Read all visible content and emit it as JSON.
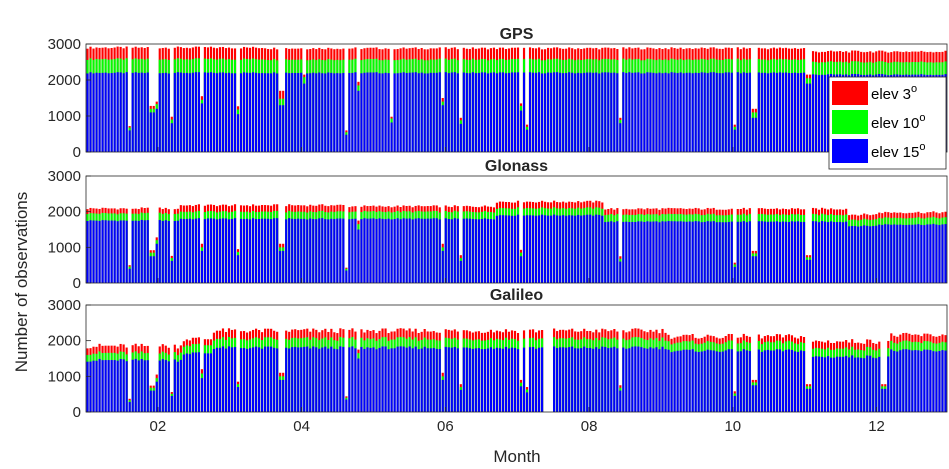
{
  "chart_data": {
    "type": "bar",
    "stacked": true,
    "ylabel": "Number of observations",
    "xlabel": "Month",
    "x_domain_months": [
      1,
      12.98
    ],
    "x_ticks": [
      {
        "value": 2,
        "label": "02"
      },
      {
        "value": 4,
        "label": "04"
      },
      {
        "value": 6,
        "label": "06"
      },
      {
        "value": 8,
        "label": "08"
      },
      {
        "value": 10,
        "label": "10"
      },
      {
        "value": 12,
        "label": "12"
      }
    ],
    "ylim": [
      0,
      3000
    ],
    "y_ticks": [
      0,
      1000,
      2000,
      3000
    ],
    "legend": {
      "placement": "right-inside (GPS panel)",
      "entries": [
        {
          "label": "elev 3",
          "superscript": "o",
          "color": "#ff0000"
        },
        {
          "label": "elev 10",
          "superscript": "o",
          "color": "#00ff00"
        },
        {
          "label": "elev 15",
          "superscript": "o",
          "color": "#0000ff"
        }
      ]
    },
    "colors": {
      "elev_3": "#ff0000",
      "elev_10": "#00ff00",
      "elev_15": "#0000ff"
    },
    "panels": [
      {
        "title": "GPS",
        "segments": [
          {
            "from": 1.0,
            "to": 3.5,
            "elev15": 2200,
            "elev10": 2580,
            "elev3": 2900
          },
          {
            "from": 3.5,
            "to": 11.0,
            "elev15": 2200,
            "elev10": 2570,
            "elev3": 2880
          },
          {
            "from": 11.0,
            "to": 12.98,
            "elev15": 2150,
            "elev10": 2500,
            "elev3": 2790
          }
        ],
        "dips": [
          {
            "month": 1.62,
            "elev15": 600,
            "elev10": 680,
            "elev3": 720
          },
          {
            "month": 1.92,
            "elev15": 1100,
            "elev10": 1200,
            "elev3": 1280
          },
          {
            "month": 2.0,
            "elev15": 1200,
            "elev10": 1330,
            "elev3": 1400
          },
          {
            "month": 2.18,
            "elev15": 800,
            "elev10": 900,
            "elev3": 980
          },
          {
            "month": 2.62,
            "elev15": 1350,
            "elev10": 1450,
            "elev3": 1550
          },
          {
            "month": 3.12,
            "elev15": 1050,
            "elev10": 1180,
            "elev3": 1270
          },
          {
            "month": 3.72,
            "elev15": 1300,
            "elev10": 1480,
            "elev3": 1700
          },
          {
            "month": 4.05,
            "elev15": 1900,
            "elev10": 2080,
            "elev3": 2150
          },
          {
            "month": 4.62,
            "elev15": 480,
            "elev10": 550,
            "elev3": 600
          },
          {
            "month": 4.8,
            "elev15": 1700,
            "elev10": 1850,
            "elev3": 1950
          },
          {
            "month": 5.25,
            "elev15": 820,
            "elev10": 930,
            "elev3": 980
          },
          {
            "month": 5.95,
            "elev15": 1300,
            "elev10": 1400,
            "elev3": 1500
          },
          {
            "month": 6.22,
            "elev15": 780,
            "elev10": 880,
            "elev3": 950
          },
          {
            "month": 7.05,
            "elev15": 1150,
            "elev10": 1280,
            "elev3": 1350
          },
          {
            "month": 7.15,
            "elev15": 620,
            "elev10": 700,
            "elev3": 760
          },
          {
            "month": 8.45,
            "elev15": 800,
            "elev10": 890,
            "elev3": 950
          },
          {
            "month": 10.02,
            "elev15": 620,
            "elev10": 700,
            "elev3": 760
          },
          {
            "month": 10.3,
            "elev15": 950,
            "elev10": 1100,
            "elev3": 1200
          },
          {
            "month": 11.05,
            "elev15": 1900,
            "elev10": 2050,
            "elev3": 2150
          }
        ]
      },
      {
        "title": "Glonass",
        "segments": [
          {
            "from": 1.0,
            "to": 2.3,
            "elev15": 1750,
            "elev10": 1950,
            "elev3": 2090
          },
          {
            "from": 2.3,
            "to": 4.6,
            "elev15": 1800,
            "elev10": 2000,
            "elev3": 2180
          },
          {
            "from": 4.6,
            "to": 6.7,
            "elev15": 1800,
            "elev10": 2000,
            "elev3": 2150
          },
          {
            "from": 6.7,
            "to": 8.2,
            "elev15": 1900,
            "elev10": 2100,
            "elev3": 2280
          },
          {
            "from": 8.2,
            "to": 11.6,
            "elev15": 1720,
            "elev10": 1920,
            "elev3": 2080
          },
          {
            "from": 11.6,
            "to": 12.0,
            "elev15": 1600,
            "elev10": 1780,
            "elev3": 1920
          },
          {
            "from": 12.0,
            "to": 12.98,
            "elev15": 1640,
            "elev10": 1830,
            "elev3": 1980
          }
        ],
        "dips": [
          {
            "month": 1.62,
            "elev15": 400,
            "elev10": 460,
            "elev3": 500
          },
          {
            "month": 1.92,
            "elev15": 750,
            "elev10": 850,
            "elev3": 920
          },
          {
            "month": 2.0,
            "elev15": 1100,
            "elev10": 1200,
            "elev3": 1280
          },
          {
            "month": 2.18,
            "elev15": 620,
            "elev10": 700,
            "elev3": 760
          },
          {
            "month": 2.62,
            "elev15": 900,
            "elev10": 1000,
            "elev3": 1100
          },
          {
            "month": 3.12,
            "elev15": 780,
            "elev10": 870,
            "elev3": 950
          },
          {
            "month": 3.72,
            "elev15": 900,
            "elev10": 1000,
            "elev3": 1100
          },
          {
            "month": 4.62,
            "elev15": 350,
            "elev10": 400,
            "elev3": 430
          },
          {
            "month": 4.8,
            "elev15": 1500,
            "elev10": 1650,
            "elev3": 1750
          },
          {
            "month": 5.95,
            "elev15": 900,
            "elev10": 1000,
            "elev3": 1100
          },
          {
            "month": 6.22,
            "elev15": 620,
            "elev10": 700,
            "elev3": 780
          },
          {
            "month": 7.05,
            "elev15": 750,
            "elev10": 850,
            "elev3": 930
          },
          {
            "month": 8.45,
            "elev15": 600,
            "elev10": 680,
            "elev3": 750
          },
          {
            "month": 10.02,
            "elev15": 450,
            "elev10": 520,
            "elev3": 570
          },
          {
            "month": 10.3,
            "elev15": 750,
            "elev10": 830,
            "elev3": 900
          },
          {
            "month": 11.05,
            "elev15": 650,
            "elev10": 720,
            "elev3": 780
          }
        ]
      },
      {
        "title": "Galileo",
        "segments": [
          {
            "from": 1.0,
            "to": 2.35,
            "elev15": 1450,
            "elev10": 1650,
            "elev3": 1850
          },
          {
            "from": 2.35,
            "to": 2.75,
            "elev15": 1650,
            "elev10": 1880,
            "elev3": 2050
          },
          {
            "from": 2.75,
            "to": 9.1,
            "elev15": 1800,
            "elev10": 2050,
            "elev3": 2280
          },
          {
            "from": 9.1,
            "to": 11.0,
            "elev15": 1720,
            "elev10": 1950,
            "elev3": 2120
          },
          {
            "from": 11.0,
            "to": 12.2,
            "elev15": 1550,
            "elev10": 1780,
            "elev3": 1980
          },
          {
            "from": 12.2,
            "to": 12.98,
            "elev15": 1720,
            "elev10": 1950,
            "elev3": 2150
          }
        ],
        "dips": [
          {
            "month": 1.62,
            "elev15": 280,
            "elev10": 330,
            "elev3": 370
          },
          {
            "month": 1.92,
            "elev15": 600,
            "elev10": 680,
            "elev3": 740
          },
          {
            "month": 2.0,
            "elev15": 850,
            "elev10": 950,
            "elev3": 1050
          },
          {
            "month": 2.18,
            "elev15": 450,
            "elev10": 510,
            "elev3": 560
          },
          {
            "month": 2.62,
            "elev15": 950,
            "elev10": 1080,
            "elev3": 1200
          },
          {
            "month": 3.12,
            "elev15": 700,
            "elev10": 780,
            "elev3": 850
          },
          {
            "month": 3.72,
            "elev15": 900,
            "elev10": 1000,
            "elev3": 1100
          },
          {
            "month": 4.62,
            "elev15": 350,
            "elev10": 400,
            "elev3": 440
          },
          {
            "month": 4.8,
            "elev15": 1500,
            "elev10": 1650,
            "elev3": 1750
          },
          {
            "month": 5.95,
            "elev15": 900,
            "elev10": 1000,
            "elev3": 1100
          },
          {
            "month": 6.22,
            "elev15": 620,
            "elev10": 700,
            "elev3": 780
          },
          {
            "month": 7.05,
            "elev15": 720,
            "elev10": 820,
            "elev3": 900
          },
          {
            "month": 7.15,
            "elev15": 550,
            "elev10": 630,
            "elev3": 700
          },
          {
            "month": 8.45,
            "elev15": 600,
            "elev10": 680,
            "elev3": 750
          },
          {
            "month": 10.02,
            "elev15": 450,
            "elev10": 520,
            "elev3": 580
          },
          {
            "month": 10.3,
            "elev15": 750,
            "elev10": 830,
            "elev3": 900
          },
          {
            "month": 11.05,
            "elev15": 650,
            "elev10": 720,
            "elev3": 780
          },
          {
            "month": 12.1,
            "elev15": 650,
            "elev10": 720,
            "elev3": 780
          }
        ],
        "gaps": [
          {
            "from": 7.38,
            "to": 7.5
          }
        ]
      }
    ]
  }
}
